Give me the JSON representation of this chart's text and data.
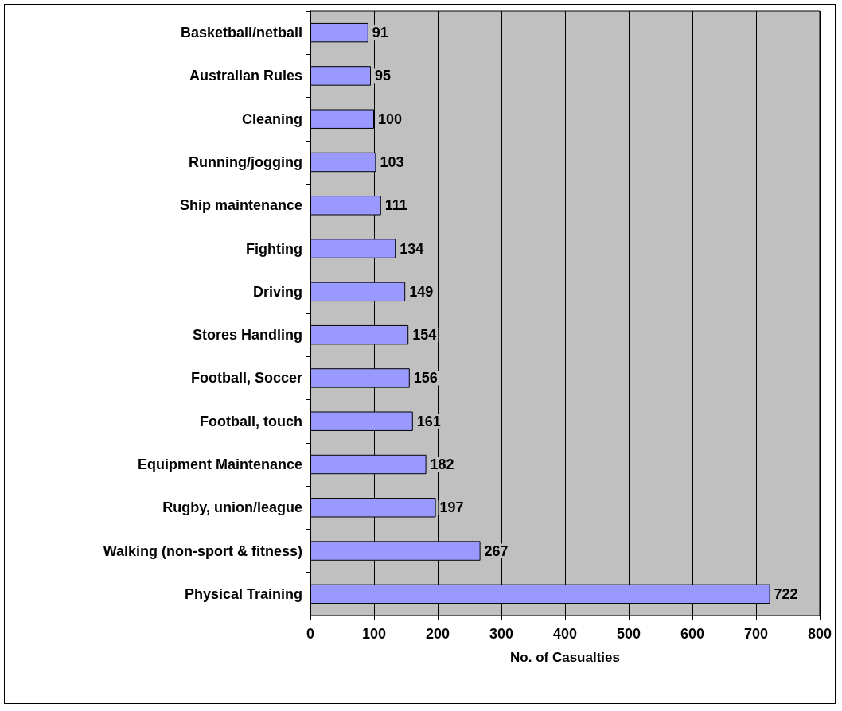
{
  "chart_data": {
    "type": "bar",
    "orientation": "horizontal",
    "xlabel": "No. of Casualties",
    "categories": [
      "Basketball/netball",
      "Australian Rules",
      "Cleaning",
      "Running/jogging",
      "Ship maintenance",
      "Fighting",
      "Driving",
      "Stores Handling",
      "Football, Soccer",
      "Football, touch",
      "Equipment Maintenance",
      "Rugby, union/league",
      "Walking (non-sport & fitness)",
      "Physical Training"
    ],
    "values": [
      91,
      95,
      100,
      103,
      111,
      134,
      149,
      154,
      156,
      161,
      182,
      197,
      267,
      722
    ],
    "color": "#9999ff",
    "xlim": [
      0,
      800
    ],
    "xticks": [
      0,
      100,
      200,
      300,
      400,
      500,
      600,
      700,
      800
    ],
    "grid": "x",
    "data_labels": true
  }
}
